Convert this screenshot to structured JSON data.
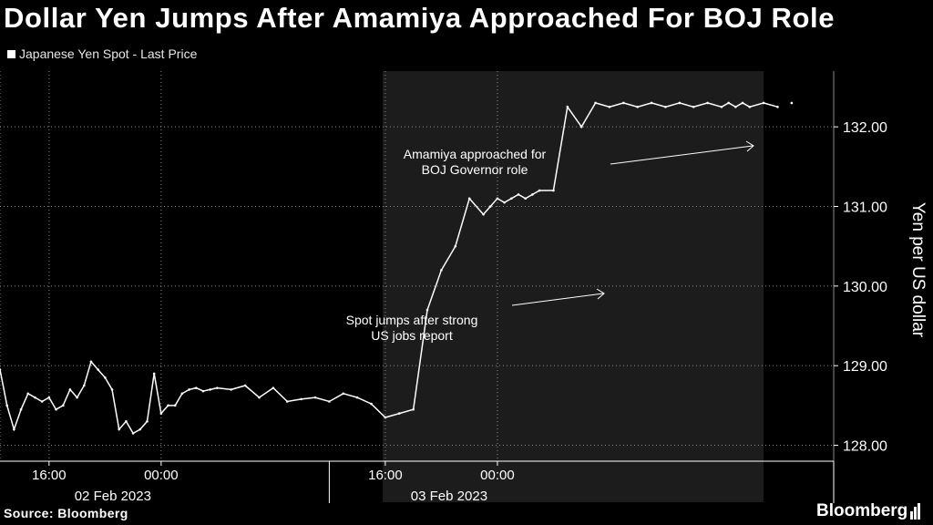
{
  "title": "Dollar Yen Jumps After Amamiya Approached For BOJ Role",
  "legend": {
    "label": "Japanese Yen Spot - Last Price",
    "swatch_color": "#ffffff"
  },
  "source": "Source: Bloomberg",
  "brand": "Bloomberg",
  "chart_data": {
    "type": "line",
    "ylabel": "Yen per US dollar",
    "ylim": [
      127.8,
      132.7
    ],
    "yticks": [
      128,
      129,
      130,
      131,
      132
    ],
    "ytick_labels": [
      "128.00",
      "129.00",
      "130.00",
      "131.00",
      "132.00"
    ],
    "xlim": [
      "2023-02-01 12:30",
      "2023-02-04 00:00"
    ],
    "xticks": [
      "2023-02-01 16:00",
      "2023-02-02 00:00",
      "2023-02-02 16:00",
      "2023-02-03 00:00"
    ],
    "xtick_labels": [
      "16:00",
      "00:00",
      "16:00",
      "00:00"
    ],
    "date_labels": [
      "02 Feb 2023",
      "03 Feb 2023"
    ],
    "grid": true,
    "background": "#000000",
    "shaded_region_color": "#1c1c1c",
    "line_color": "#ffffff",
    "series": [
      {
        "x": [
          "2023-02-01 12:30",
          "2023-02-01 13:00",
          "2023-02-01 13:30",
          "2023-02-01 14:00",
          "2023-02-01 14:30",
          "2023-02-01 15:00",
          "2023-02-01 15:30",
          "2023-02-01 16:00",
          "2023-02-01 16:30",
          "2023-02-01 17:00",
          "2023-02-01 17:30",
          "2023-02-01 18:00",
          "2023-02-01 18:30",
          "2023-02-01 19:00",
          "2023-02-01 19:30",
          "2023-02-01 20:00",
          "2023-02-01 20:30",
          "2023-02-01 21:00",
          "2023-02-01 21:30",
          "2023-02-01 22:00",
          "2023-02-01 22:30",
          "2023-02-01 23:00",
          "2023-02-01 23:30",
          "2023-02-02 00:00",
          "2023-02-02 00:30",
          "2023-02-02 01:00",
          "2023-02-02 01:30",
          "2023-02-02 02:00",
          "2023-02-02 02:30",
          "2023-02-02 03:00",
          "2023-02-02 03:30",
          "2023-02-02 04:00",
          "2023-02-02 05:00",
          "2023-02-02 06:00",
          "2023-02-02 07:00",
          "2023-02-02 08:00",
          "2023-02-02 09:00",
          "2023-02-02 10:00",
          "2023-02-02 11:00",
          "2023-02-02 12:00",
          "2023-02-02 13:00",
          "2023-02-02 14:00",
          "2023-02-02 15:00",
          "2023-02-02 16:00",
          "2023-02-02 17:00",
          "2023-02-02 18:00",
          "2023-02-02 19:00",
          "2023-02-02 20:00",
          "2023-02-02 21:00",
          "2023-02-02 22:00",
          "2023-02-02 23:00",
          "2023-02-02 23:30",
          "2023-02-03 00:00",
          "2023-02-03 00:30",
          "2023-02-03 01:00",
          "2023-02-03 01:30",
          "2023-02-03 02:00",
          "2023-02-03 02:30",
          "2023-02-03 03:00",
          "2023-02-03 04:00",
          "2023-02-03 05:00",
          "2023-02-03 06:00",
          "2023-02-03 07:00",
          "2023-02-03 08:00",
          "2023-02-03 09:00",
          "2023-02-03 10:00",
          "2023-02-03 11:00",
          "2023-02-03 12:00",
          "2023-02-03 13:00",
          "2023-02-03 14:00",
          "2023-02-03 15:00",
          "2023-02-03 16:00",
          "2023-02-03 16:30",
          "2023-02-03 17:00",
          "2023-02-03 17:30",
          "2023-02-03 18:00",
          "2023-02-03 19:00",
          "2023-02-03 20:00",
          "2023-02-03 21:00"
        ],
        "y": [
          128.95,
          128.5,
          128.2,
          128.45,
          128.65,
          128.6,
          128.55,
          128.6,
          128.45,
          128.5,
          128.7,
          128.6,
          128.75,
          129.05,
          128.95,
          128.85,
          128.7,
          128.2,
          128.3,
          128.15,
          128.2,
          128.3,
          128.9,
          128.4,
          128.5,
          128.5,
          128.65,
          128.7,
          128.72,
          128.68,
          128.7,
          128.72,
          128.7,
          128.75,
          128.6,
          128.72,
          128.55,
          128.58,
          128.6,
          128.55,
          128.65,
          128.6,
          128.52,
          128.35,
          128.4,
          128.45,
          129.7,
          130.2,
          130.5,
          131.1,
          130.9,
          131.0,
          131.1,
          131.05,
          131.1,
          131.15,
          131.1,
          131.15,
          131.2,
          131.2,
          132.25,
          132.0,
          132.3,
          132.25,
          132.3,
          132.25,
          132.3,
          132.25,
          132.3,
          132.25,
          132.3,
          132.25,
          132.3,
          132.25,
          132.3,
          132.25,
          132.3,
          132.25,
          132.3
        ]
      }
    ],
    "annotations": [
      {
        "text_lines": [
          "Spot jumps after strong",
          "US jobs report"
        ]
      },
      {
        "text_lines": [
          "Amamiya approached for",
          "BOJ Governor role"
        ]
      }
    ]
  }
}
